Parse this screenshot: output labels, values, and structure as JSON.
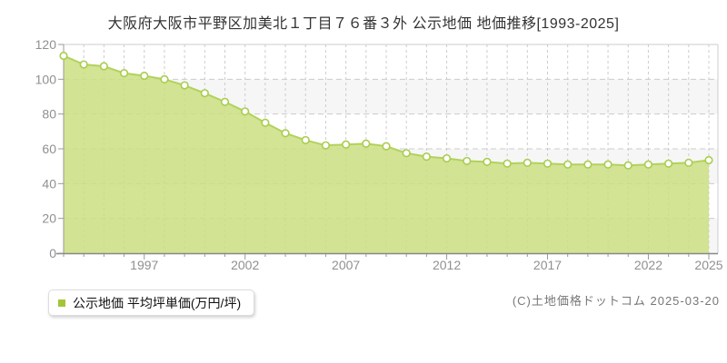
{
  "title": "大阪府大阪市平野区加美北１丁目７６番３外 公示地価 地価推移[1993-2025]",
  "legend": {
    "marker_color": "#a3c639",
    "label": "公示地価 平均坪単価(万円/坪)"
  },
  "copyright": "(C)土地価格ドットコム 2025-03-20",
  "chart_data": {
    "type": "area",
    "title": "大阪府大阪市平野区加美北１丁目７６番３外 公示地価 地価推移[1993-2025]",
    "xlabel": "",
    "ylabel": "公示地価 平均坪単価(万円/坪)",
    "x": [
      1993,
      1994,
      1995,
      1996,
      1997,
      1998,
      1999,
      2000,
      2001,
      2002,
      2003,
      2004,
      2005,
      2006,
      2007,
      2008,
      2009,
      2010,
      2011,
      2012,
      2013,
      2014,
      2015,
      2016,
      2017,
      2018,
      2019,
      2020,
      2021,
      2022,
      2023,
      2024,
      2025
    ],
    "series": [
      {
        "name": "公示地価 平均坪単価(万円/坪)",
        "values": [
          113.5,
          108.5,
          107.5,
          103.5,
          102,
          100,
          96.5,
          92,
          87,
          81.5,
          75,
          69,
          65,
          62,
          62.5,
          63,
          61.5,
          57.5,
          55.5,
          54.5,
          53,
          52.5,
          51.5,
          52,
          51.5,
          51,
          51,
          51,
          50.5,
          51,
          51.5,
          52,
          53.5
        ]
      }
    ],
    "ylim": [
      0,
      120
    ],
    "ytick_interval": 20,
    "ytick_labels": [
      "0",
      "20",
      "40",
      "60",
      "80",
      "100",
      "120"
    ],
    "xtick_labels": [
      "1997",
      "2002",
      "2007",
      "2012",
      "2017",
      "2022",
      "2025"
    ],
    "grid": true,
    "legend_position": "bottom-left",
    "colors": {
      "area_fill": "#cbdf83",
      "line": "#b2d25c",
      "marker_fill": "#ffffff",
      "marker_stroke": "#a9cd4e",
      "gridline": "#cccccc",
      "band": "#f6f6f6",
      "axis": "#888888",
      "tick_label": "#909090"
    }
  }
}
